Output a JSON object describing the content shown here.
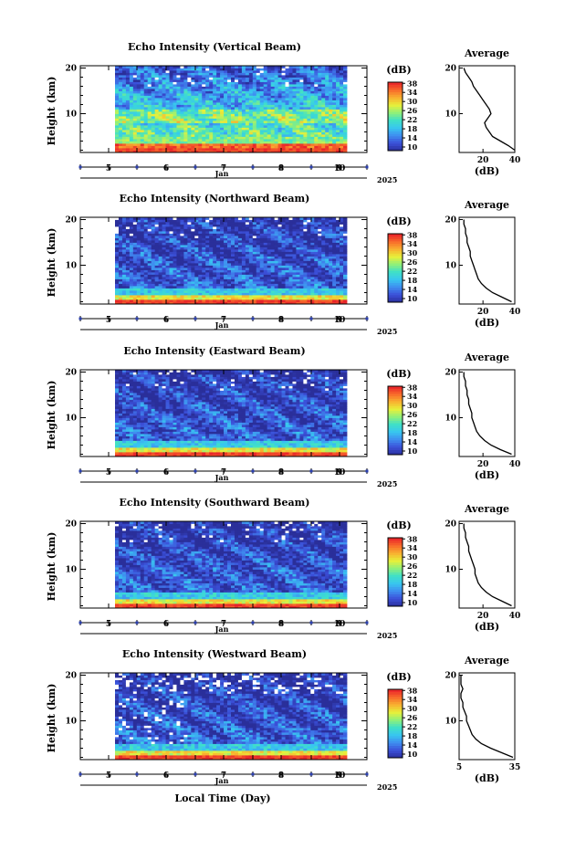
{
  "figure": {
    "xlabel": "Local Time (Day)",
    "month_label": "Jan",
    "year_label": "2025",
    "colorbar_unit": "(dB)",
    "avg_title": "Average",
    "avg_xlabel": "(dB)",
    "colorbar_ticks": [
      "10",
      "14",
      "18",
      "22",
      "26",
      "30",
      "34",
      "38"
    ],
    "colorbar_colors": [
      "#2a2f9a",
      "#3b4fd8",
      "#3f8df0",
      "#38c6f0",
      "#3fe0c8",
      "#8ff07a",
      "#e8f03a",
      "#f8b030",
      "#f86a2a",
      "#e8202a"
    ],
    "day_labels": [
      "5",
      "6",
      "7",
      "8",
      "9",
      "10"
    ],
    "height_ticks": [
      "10",
      "20"
    ]
  },
  "chart_data": [
    {
      "type": "heatmap",
      "title": "Echo Intensity (Vertical Beam)",
      "ylabel": "Height (km)",
      "xlabel": "Local Time (Day)",
      "x_range": [
        5,
        10.3
      ],
      "ylim": [
        1.5,
        20.5
      ],
      "color_range": [
        10,
        38
      ],
      "avg_profile": {
        "title": "Average",
        "xlabel": "(dB)",
        "xticks": [
          "20",
          "40"
        ],
        "xlim": [
          5,
          40
        ],
        "heights": [
          2,
          3,
          4,
          5,
          6,
          7,
          8,
          9,
          10,
          11,
          12,
          13,
          14,
          15,
          16,
          17,
          18,
          19,
          20
        ],
        "values": [
          40,
          36,
          31,
          26,
          24,
          22,
          21,
          23,
          25,
          24,
          22,
          20,
          18,
          16,
          14,
          13,
          11,
          9,
          8
        ]
      }
    },
    {
      "type": "heatmap",
      "title": "Echo Intensity (Northward Beam)",
      "ylabel": "Height (km)",
      "xlabel": "Local Time (Day)",
      "x_range": [
        5,
        10.3
      ],
      "ylim": [
        1.5,
        20.5
      ],
      "color_range": [
        10,
        38
      ],
      "avg_profile": {
        "title": "Average",
        "xlabel": "(dB)",
        "xticks": [
          "20",
          "40"
        ],
        "xlim": [
          5,
          40
        ],
        "heights": [
          2,
          3,
          4,
          5,
          6,
          7,
          8,
          9,
          10,
          11,
          12,
          13,
          14,
          15,
          16,
          17,
          18,
          19,
          20
        ],
        "values": [
          38,
          32,
          26,
          22,
          19,
          17,
          16,
          15,
          14,
          13,
          12,
          12,
          11,
          10,
          10,
          9,
          9,
          8,
          8
        ]
      }
    },
    {
      "type": "heatmap",
      "title": "Echo Intensity (Eastward Beam)",
      "ylabel": "Height (km)",
      "xlabel": "Local Time (Day)",
      "x_range": [
        5,
        10.3
      ],
      "ylim": [
        1.5,
        20.5
      ],
      "color_range": [
        10,
        38
      ],
      "avg_profile": {
        "title": "Average",
        "xlabel": "(dB)",
        "xticks": [
          "20",
          "40"
        ],
        "xlim": [
          5,
          40
        ],
        "heights": [
          2,
          3,
          4,
          5,
          6,
          7,
          8,
          9,
          10,
          11,
          12,
          13,
          14,
          15,
          16,
          17,
          18,
          19,
          20
        ],
        "values": [
          38,
          31,
          25,
          21,
          18,
          16,
          15,
          14,
          13,
          13,
          12,
          11,
          11,
          10,
          10,
          9,
          9,
          8,
          8
        ]
      }
    },
    {
      "type": "heatmap",
      "title": "Echo Intensity (Southward Beam)",
      "ylabel": "Height (km)",
      "xlabel": "Local Time (Day)",
      "x_range": [
        5,
        10.3
      ],
      "ylim": [
        1.5,
        20.5
      ],
      "color_range": [
        10,
        38
      ],
      "avg_profile": {
        "title": "Average",
        "xlabel": "(dB)",
        "xticks": [
          "20",
          "40"
        ],
        "xlim": [
          5,
          40
        ],
        "heights": [
          2,
          3,
          4,
          5,
          6,
          7,
          8,
          9,
          10,
          11,
          12,
          13,
          14,
          15,
          16,
          17,
          18,
          19,
          20
        ],
        "values": [
          38,
          32,
          26,
          22,
          19,
          17,
          16,
          15,
          15,
          14,
          13,
          12,
          11,
          11,
          10,
          9,
          9,
          8,
          8
        ]
      }
    },
    {
      "type": "heatmap",
      "title": "Echo Intensity (Westward Beam)",
      "ylabel": "Height (km)",
      "xlabel": "Local Time (Day)",
      "x_range": [
        5,
        10.3
      ],
      "ylim": [
        1.5,
        20.5
      ],
      "color_range": [
        10,
        38
      ],
      "avg_profile": {
        "title": "Average",
        "xlabel": "(dB)",
        "xticks": [
          "5",
          "35"
        ],
        "xlim": [
          5,
          35
        ],
        "heights": [
          2,
          3,
          4,
          5,
          6,
          7,
          8,
          9,
          10,
          11,
          12,
          13,
          14,
          15,
          16,
          17,
          18,
          19,
          20
        ],
        "values": [
          34,
          28,
          22,
          17,
          14,
          12,
          11,
          10,
          9,
          9,
          8,
          7,
          7,
          6,
          6,
          7,
          6,
          6,
          6
        ]
      }
    }
  ]
}
